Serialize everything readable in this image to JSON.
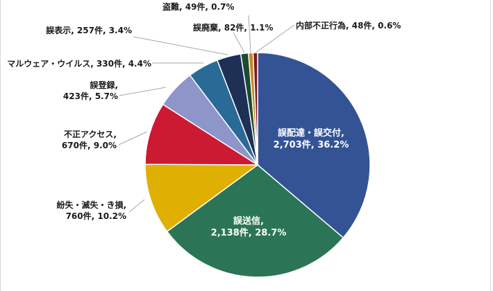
{
  "chart_data": {
    "type": "pie",
    "title": "",
    "categories": [
      "誤配達・誤交付",
      "誤送信",
      "紛失・滅失・き損",
      "不正アクセス",
      "誤登録",
      "マルウェア・ウイルス",
      "誤表示",
      "誤廃棄",
      "盗難",
      "内部不正行為"
    ],
    "values": [
      2703,
      2138,
      760,
      670,
      423,
      330,
      257,
      82,
      49,
      48
    ],
    "percents": [
      36.2,
      28.7,
      10.2,
      9.0,
      5.7,
      4.4,
      3.4,
      1.1,
      0.7,
      0.6
    ],
    "colors": [
      "#335395",
      "#2b7556",
      "#dfb002",
      "#cc1a32",
      "#8e95c8",
      "#2a6a96",
      "#1f3056",
      "#1c4b33",
      "#c8871f",
      "#7a1a24"
    ],
    "slices": [
      {
        "lines": [
          "誤配達・誤交付,",
          "2,703件, 36.2%"
        ]
      },
      {
        "lines": [
          "誤送信,",
          "2,138件, 28.7%"
        ]
      },
      {
        "lines": [
          "紛失・滅失・き損,",
          "760件, 10.2%"
        ]
      },
      {
        "lines": [
          "不正アクセス,",
          "670件, 9.0%"
        ]
      },
      {
        "lines": [
          "誤登録,",
          "423件, 5.7%"
        ]
      },
      {
        "lines": [
          "マルウェア・ウイルス, 330件, 4.4%"
        ]
      },
      {
        "lines": [
          "誤表示, 257件, 3.4%"
        ]
      },
      {
        "lines": [
          "誤廃棄, 82件, 1.1%"
        ]
      },
      {
        "lines": [
          "盗難, 49件, 0.7%"
        ]
      },
      {
        "lines": [
          "内部不正行為, 48件, 0.6%"
        ]
      }
    ]
  }
}
